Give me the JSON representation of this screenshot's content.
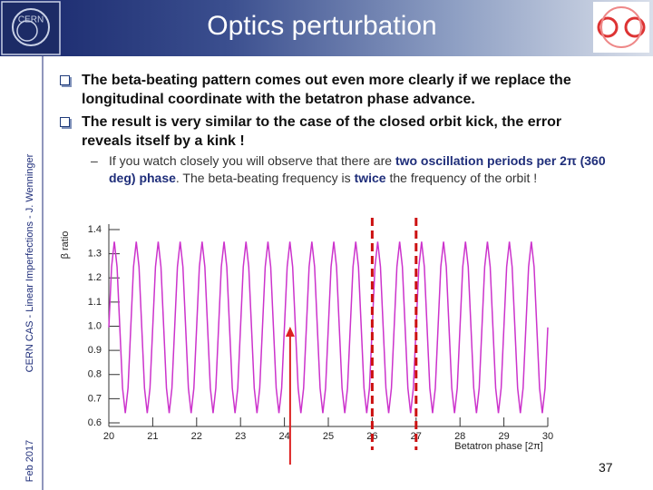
{
  "header": {
    "title": "Optics perturbation"
  },
  "sidebar": {
    "caption": "CERN CAS - Linear Imperfections - J. Wenninger",
    "date": "Feb 2017"
  },
  "bullets": [
    "The beta-beating pattern comes out even more clearly if we replace the longitudinal coordinate with the betatron phase advance.",
    "The result is very similar to the case of the closed orbit kick, the error reveals itself by a kink !"
  ],
  "sub_bullet": [
    "If you watch closely you will observe that there are ",
    "two oscillation periods per 2π (360 deg) phase",
    ". The beta-beating frequency is ",
    "twice",
    " the frequency of the orbit !"
  ],
  "page_number": "37",
  "chart_data": {
    "type": "line",
    "color": "#cc33cc",
    "xlabel": "Betatron phase [2π]",
    "ylabel": "β ratio",
    "xlim": [
      20,
      30
    ],
    "ylim": [
      0.6,
      1.4
    ],
    "xticks": [
      20,
      21,
      22,
      23,
      24,
      25,
      26,
      27,
      28,
      29,
      30
    ],
    "yticks": [
      0.6,
      0.7,
      0.8,
      0.9,
      {
        "value": 1,
        "label": "1.0"
      },
      1.1,
      1.2,
      1.3,
      1.4
    ],
    "annotations": {
      "dashed_x": [
        26,
        27
      ],
      "dashed_color": "#cc1111",
      "arrow_x": 24.13,
      "arrow_color": "#dd2222"
    },
    "x": [
      20,
      20.0625,
      20.125,
      20.1875,
      20.25,
      20.3125,
      20.375,
      20.4375,
      20.5,
      20.5625,
      20.625,
      20.6875,
      20.75,
      20.8125,
      20.875,
      20.9375,
      21,
      21.0625,
      21.125,
      21.1875,
      21.25,
      21.3125,
      21.375,
      21.4375,
      21.5,
      21.5625,
      21.625,
      21.6875,
      21.75,
      21.8125,
      21.875,
      21.9375,
      22,
      22.0625,
      22.125,
      22.1875,
      22.25,
      22.3125,
      22.375,
      22.4375,
      22.5,
      22.5625,
      22.625,
      22.6875,
      22.75,
      22.8125,
      22.875,
      22.9375,
      23,
      23.0625,
      23.125,
      23.1875,
      23.25,
      23.3125,
      23.375,
      23.4375,
      23.5,
      23.5625,
      23.625,
      23.6875,
      23.75,
      23.8125,
      23.875,
      23.9375,
      24,
      24.0625,
      24.125,
      24.1875,
      24.25,
      24.3125,
      24.375,
      24.4375,
      24.5,
      24.5625,
      24.625,
      24.6875,
      24.75,
      24.8125,
      24.875,
      24.9375,
      25,
      25.0625,
      25.125,
      25.1875,
      25.25,
      25.3125,
      25.375,
      25.4375,
      25.5,
      25.5625,
      25.625,
      25.6875,
      25.75,
      25.8125,
      25.875,
      25.9375,
      26,
      26.0625,
      26.125,
      26.1875,
      26.25,
      26.3125,
      26.375,
      26.4375,
      26.5,
      26.5625,
      26.625,
      26.6875,
      26.75,
      26.8125,
      26.875,
      26.9375,
      27,
      27.0625,
      27.125,
      27.1875,
      27.25,
      27.3125,
      27.375,
      27.4375,
      27.5,
      27.5625,
      27.625,
      27.6875,
      27.75,
      27.8125,
      27.875,
      27.9375,
      28,
      28.0625,
      28.125,
      28.1875,
      28.25,
      28.3125,
      28.375,
      28.4375,
      28.5,
      28.5625,
      28.625,
      28.6875,
      28.75,
      28.8125,
      28.875,
      28.9375,
      29,
      29.0625,
      29.125,
      29.1875,
      29.25,
      29.3125,
      29.375,
      29.4375,
      29.5,
      29.5625,
      29.625,
      29.6875,
      29.75,
      29.8125,
      29.875,
      29.9375,
      30
    ],
    "values": [
      0.995,
      1.246,
      1.35,
      1.246,
      0.995,
      0.744,
      0.64,
      0.744,
      0.995,
      1.246,
      1.35,
      1.246,
      0.995,
      0.744,
      0.64,
      0.744,
      0.995,
      1.246,
      1.35,
      1.246,
      0.995,
      0.744,
      0.64,
      0.744,
      0.995,
      1.246,
      1.35,
      1.246,
      0.995,
      0.744,
      0.64,
      0.744,
      0.995,
      1.246,
      1.35,
      1.246,
      0.995,
      0.744,
      0.64,
      0.744,
      0.995,
      1.246,
      1.35,
      1.246,
      0.995,
      0.744,
      0.64,
      0.744,
      0.995,
      1.246,
      1.35,
      1.246,
      0.995,
      0.744,
      0.64,
      0.744,
      0.995,
      1.246,
      1.35,
      1.246,
      0.995,
      0.744,
      0.64,
      0.744,
      0.995,
      1.246,
      1.35,
      1.246,
      0.995,
      0.744,
      0.64,
      0.744,
      0.995,
      1.246,
      1.35,
      1.246,
      0.995,
      0.744,
      0.64,
      0.744,
      0.995,
      1.246,
      1.35,
      1.246,
      0.995,
      0.744,
      0.64,
      0.744,
      0.995,
      1.246,
      1.35,
      1.246,
      0.995,
      0.744,
      0.64,
      0.744,
      0.995,
      1.246,
      1.35,
      1.246,
      0.995,
      0.744,
      0.64,
      0.744,
      0.995,
      1.246,
      1.35,
      1.246,
      0.995,
      0.744,
      0.64,
      0.744,
      0.995,
      1.246,
      1.35,
      1.246,
      0.995,
      0.744,
      0.64,
      0.744,
      0.995,
      1.246,
      1.35,
      1.246,
      0.995,
      0.744,
      0.64,
      0.744,
      0.995,
      1.246,
      1.35,
      1.246,
      0.995,
      0.744,
      0.64,
      0.744,
      0.995,
      1.246,
      1.35,
      1.246,
      0.995,
      0.744,
      0.64,
      0.744,
      0.995,
      1.246,
      1.35,
      1.246,
      0.995,
      0.744,
      0.64,
      0.744,
      0.995,
      1.246,
      1.35,
      1.246,
      0.995,
      0.744,
      0.64,
      0.744,
      0.995
    ]
  }
}
